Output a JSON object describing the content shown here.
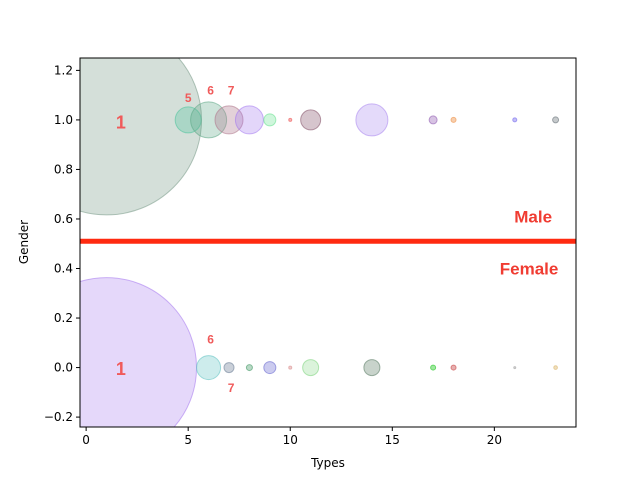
{
  "chart_data": {
    "type": "scatter",
    "xlabel": "Types",
    "ylabel": "Gender",
    "xlim": [
      -0.3,
      24
    ],
    "ylim": [
      -0.24,
      1.25
    ],
    "xticks": [
      0,
      5,
      10,
      15,
      20
    ],
    "yticks": [
      -0.2,
      0.0,
      0.2,
      0.4,
      0.6,
      0.8,
      1.0,
      1.2
    ],
    "grid": false,
    "divider": {
      "y": 0.51,
      "color": "#ff2a10",
      "labels": [
        {
          "text": "Male",
          "x": 21.9,
          "y": 0.585
        },
        {
          "text": "Female",
          "x": 21.7,
          "y": 0.375
        }
      ]
    },
    "series": [
      {
        "points": [
          {
            "x": 1,
            "y": 1,
            "size": 95,
            "color": "#7a9a8a",
            "alpha": 0.32
          },
          {
            "x": 5,
            "y": 1,
            "size": 13,
            "color": "#49c29a",
            "alpha": 0.3
          },
          {
            "x": 6,
            "y": 1,
            "size": 18,
            "color": "#5aa583",
            "alpha": 0.3
          },
          {
            "x": 7,
            "y": 1,
            "size": 14,
            "color": "#b07a8e",
            "alpha": 0.35
          },
          {
            "x": 8,
            "y": 1,
            "size": 14,
            "color": "#a276f0",
            "alpha": 0.3
          },
          {
            "x": 9,
            "y": 1,
            "size": 6,
            "color": "#60e08a",
            "alpha": 0.3
          },
          {
            "x": 10,
            "y": 1,
            "size": 1.5,
            "color": "#f07070",
            "alpha": 0.5
          },
          {
            "x": 11,
            "y": 1,
            "size": 10,
            "color": "#8a5a70",
            "alpha": 0.35
          },
          {
            "x": 14,
            "y": 1,
            "size": 16,
            "color": "#a784ef",
            "alpha": 0.3
          },
          {
            "x": 17,
            "y": 1,
            "size": 4,
            "color": "#9a6ab8",
            "alpha": 0.4
          },
          {
            "x": 18,
            "y": 1,
            "size": 2.5,
            "color": "#f0a060",
            "alpha": 0.5
          },
          {
            "x": 21,
            "y": 1,
            "size": 2,
            "color": "#8a80f0",
            "alpha": 0.5
          },
          {
            "x": 23,
            "y": 1,
            "size": 3,
            "color": "#707a80",
            "alpha": 0.4
          }
        ]
      },
      {
        "points": [
          {
            "x": 1,
            "y": 0,
            "size": 90,
            "color": "#a373ee",
            "alpha": 0.28
          },
          {
            "x": 6,
            "y": 0,
            "size": 12,
            "color": "#5ac0c0",
            "alpha": 0.3
          },
          {
            "x": 7,
            "y": 0,
            "size": 5,
            "color": "#7a8aa0",
            "alpha": 0.4
          },
          {
            "x": 8,
            "y": 0,
            "size": 3,
            "color": "#50a070",
            "alpha": 0.4
          },
          {
            "x": 9,
            "y": 0,
            "size": 6,
            "color": "#6a6ad0",
            "alpha": 0.35
          },
          {
            "x": 10,
            "y": 0,
            "size": 1.5,
            "color": "#e0a0a0",
            "alpha": 0.5
          },
          {
            "x": 11,
            "y": 0,
            "size": 8,
            "color": "#70d070",
            "alpha": 0.25
          },
          {
            "x": 14,
            "y": 0,
            "size": 8,
            "color": "#60806a",
            "alpha": 0.35
          },
          {
            "x": 17,
            "y": 0,
            "size": 2.5,
            "color": "#40d040",
            "alpha": 0.5
          },
          {
            "x": 18,
            "y": 0,
            "size": 2.5,
            "color": "#d06060",
            "alpha": 0.5
          },
          {
            "x": 21,
            "y": 0,
            "size": 1,
            "color": "#b0b0b0",
            "alpha": 0.5
          },
          {
            "x": 23,
            "y": 0,
            "size": 1.8,
            "color": "#e0c080",
            "alpha": 0.5
          }
        ]
      }
    ],
    "annotations": [
      {
        "text": "1",
        "x": 1.7,
        "y": 0.985,
        "size": "big"
      },
      {
        "text": "5",
        "x": 5.0,
        "y": 1.085,
        "size": "small"
      },
      {
        "text": "6",
        "x": 6.1,
        "y": 1.115,
        "size": "small"
      },
      {
        "text": "7",
        "x": 7.1,
        "y": 1.115,
        "size": "small"
      },
      {
        "text": "1",
        "x": 1.7,
        "y": -0.01,
        "size": "big"
      },
      {
        "text": "6",
        "x": 6.1,
        "y": 0.11,
        "size": "small"
      },
      {
        "text": "7",
        "x": 7.1,
        "y": -0.085,
        "size": "small"
      }
    ]
  }
}
